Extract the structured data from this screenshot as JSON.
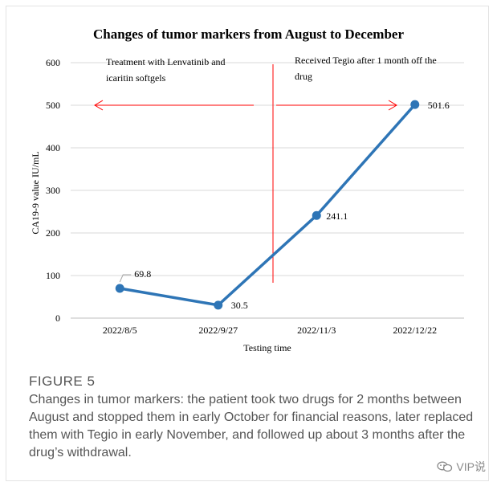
{
  "chart_data": {
    "type": "line",
    "title": "Changes of  tumor markers from August to December",
    "xlabel": "Testing time",
    "ylabel": "CA19-9 value IU/mL",
    "categories": [
      "2022/8/5",
      "2022/9/27",
      "2022/11/3",
      "2022/12/22"
    ],
    "series": [
      {
        "values": [
          69.8,
          30.5,
          241.1,
          501.6
        ],
        "data_labels": [
          "69.8",
          "30.5",
          "241.1",
          "501.6"
        ]
      }
    ],
    "ylim": [
      0,
      600
    ],
    "yticks": [
      0,
      100,
      200,
      300,
      400,
      500,
      600
    ],
    "grid": true,
    "series_color": "#2e75b6",
    "annotation_color": "#ff0000",
    "annotations": {
      "left_text_line1": "Treatment with Lenvatinib and",
      "left_text_line2": "icaritin softgels",
      "right_text_line1": "Received Tegio after 1 month off the",
      "right_text_line2": "drug"
    }
  },
  "caption": {
    "label": "FIGURE 5",
    "text": "Changes in tumor markers: the patient took two drugs for 2 months between August and stopped them in early October for financial reasons, later replaced them with Tegio in early November, and followed up about 3 months after the drug’s withdrawal."
  },
  "watermark": {
    "icon": "wechat-icon",
    "text": "VIP说"
  }
}
